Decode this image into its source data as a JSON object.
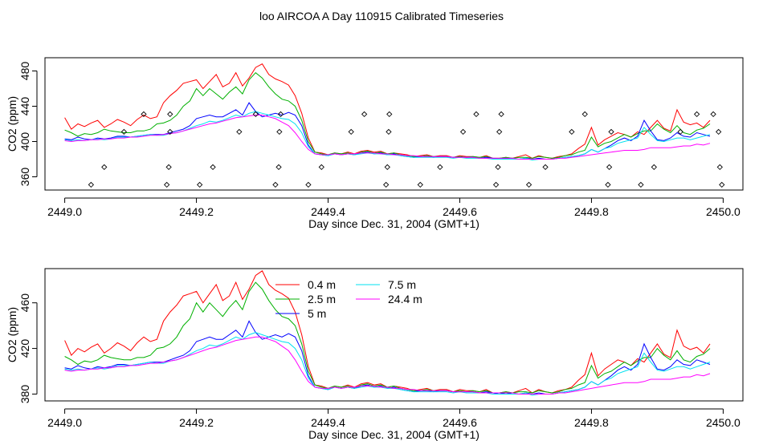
{
  "title": "loo AIRCOA A  Day 110915  Calibrated Timeseries",
  "colors": {
    "0.4 m": "#ff0000",
    "2.5 m": "#00b000",
    "5 m": "#0000ff",
    "7.5 m": "#00e0f0",
    "24.4 m": "#ff00ff",
    "points": "#000000",
    "axes": "#000000",
    "background": "#ffffff"
  },
  "chart_data": [
    {
      "type": "line",
      "xlabel": "Day since Dec. 31, 2004 (GMT+1)",
      "ylabel": "CO2 (ppm)",
      "xlim": [
        2448.97,
        2450.03
      ],
      "ylim": [
        345,
        495
      ],
      "xticks": [
        2449.0,
        2449.2,
        2449.4,
        2449.6,
        2449.8,
        2450.0
      ],
      "xtick_labels": [
        "2449.0",
        "2449.2",
        "2449.4",
        "2449.6",
        "2449.8",
        "2450.0"
      ],
      "yticks": [
        360,
        400,
        440,
        480
      ],
      "ytick_labels": [
        "360",
        "400",
        "440",
        "480"
      ],
      "legend": null,
      "points": {
        "x": [
          2449.04,
          2449.06,
          2449.09,
          2449.12,
          2449.155,
          2449.158,
          2449.16,
          2449.16,
          2449.205,
          2449.225,
          2449.265,
          2449.29,
          2449.32,
          2449.325,
          2449.326,
          2449.328,
          2449.37,
          2449.39,
          2449.435,
          2449.455,
          2449.488,
          2449.49,
          2449.492,
          2449.493,
          2449.54,
          2449.57,
          2449.605,
          2449.625,
          2449.655,
          2449.658,
          2449.66,
          2449.663,
          2449.705,
          2449.73,
          2449.77,
          2449.79,
          2449.825,
          2449.827,
          2449.83,
          2449.875,
          2449.895,
          2449.935,
          2449.96,
          2449.985,
          2449.993,
          2449.995,
          2449.998
        ],
        "y": [
          351,
          371,
          411,
          431,
          351,
          371,
          411,
          431,
          351,
          371,
          411,
          431,
          351,
          371,
          411,
          431,
          351,
          371,
          411,
          431,
          351,
          371,
          411,
          431,
          351,
          371,
          411,
          431,
          351,
          371,
          411,
          431,
          351,
          371,
          411,
          431,
          351,
          371,
          411,
          351,
          371,
          411,
          431,
          431,
          411,
          371,
          351
        ]
      }
    },
    {
      "type": "line",
      "xlabel": "Day since Dec. 31, 2004 (GMT+1)",
      "ylabel": "CO2 (ppm)",
      "xlim": [
        2448.97,
        2450.03
      ],
      "ylim": [
        374,
        490
      ],
      "xticks": [
        2449.0,
        2449.2,
        2449.4,
        2449.6,
        2449.8,
        2450.0
      ],
      "xtick_labels": [
        "2449.0",
        "2449.2",
        "2449.4",
        "2449.6",
        "2449.8",
        "2450.0"
      ],
      "yticks": [
        380,
        420,
        460
      ],
      "ytick_labels": [
        "380",
        "420",
        "460"
      ],
      "legend": "top-center, two columns"
    }
  ],
  "series_x": [
    2449.0,
    2449.01,
    2449.02,
    2449.03,
    2449.04,
    2449.05,
    2449.06,
    2449.07,
    2449.08,
    2449.09,
    2449.1,
    2449.11,
    2449.12,
    2449.13,
    2449.14,
    2449.15,
    2449.16,
    2449.17,
    2449.18,
    2449.19,
    2449.2,
    2449.21,
    2449.22,
    2449.23,
    2449.24,
    2449.25,
    2449.26,
    2449.27,
    2449.28,
    2449.29,
    2449.3,
    2449.31,
    2449.32,
    2449.33,
    2449.34,
    2449.35,
    2449.36,
    2449.37,
    2449.38,
    2449.39,
    2449.4,
    2449.41,
    2449.42,
    2449.43,
    2449.44,
    2449.45,
    2449.46,
    2449.47,
    2449.48,
    2449.49,
    2449.5,
    2449.51,
    2449.52,
    2449.53,
    2449.54,
    2449.55,
    2449.56,
    2449.57,
    2449.58,
    2449.59,
    2449.6,
    2449.61,
    2449.62,
    2449.63,
    2449.64,
    2449.65,
    2449.66,
    2449.67,
    2449.68,
    2449.69,
    2449.7,
    2449.71,
    2449.72,
    2449.73,
    2449.74,
    2449.75,
    2449.76,
    2449.77,
    2449.78,
    2449.79,
    2449.8,
    2449.81,
    2449.82,
    2449.83,
    2449.84,
    2449.85,
    2449.86,
    2449.87,
    2449.88,
    2449.89,
    2449.9,
    2449.91,
    2449.92,
    2449.93,
    2449.94,
    2449.95,
    2449.96,
    2449.97,
    2449.98
  ],
  "series": [
    {
      "name": "0.4 m",
      "values": [
        427,
        414,
        420,
        417,
        421,
        424,
        416,
        420,
        425,
        422,
        418,
        425,
        430,
        426,
        428,
        444,
        452,
        458,
        466,
        468,
        470,
        460,
        468,
        476,
        462,
        466,
        478,
        463,
        472,
        484,
        488,
        476,
        471,
        468,
        464,
        452,
        432,
        404,
        388,
        387,
        385,
        387,
        386,
        388,
        386,
        389,
        390,
        388,
        389,
        386,
        387,
        386,
        385,
        383,
        384,
        385,
        383,
        384,
        384,
        382,
        384,
        383,
        383,
        382,
        384,
        381,
        381,
        382,
        381,
        383,
        385,
        381,
        384,
        382,
        381,
        383,
        384,
        386,
        392,
        397,
        416,
        396,
        402,
        406,
        410,
        408,
        405,
        411,
        408,
        416,
        424,
        415,
        412,
        436,
        422,
        419,
        421,
        416,
        424
      ]
    },
    {
      "name": "2.5 m",
      "values": [
        413,
        410,
        406,
        409,
        408,
        410,
        414,
        412,
        411,
        410,
        410,
        412,
        412,
        414,
        420,
        421,
        424,
        430,
        440,
        446,
        460,
        452,
        460,
        454,
        448,
        456,
        462,
        454,
        470,
        478,
        472,
        462,
        454,
        448,
        446,
        440,
        424,
        400,
        388,
        386,
        385,
        387,
        386,
        387,
        385,
        388,
        389,
        387,
        388,
        386,
        387,
        385,
        384,
        383,
        383,
        384,
        383,
        383,
        383,
        382,
        383,
        382,
        383,
        382,
        383,
        381,
        381,
        382,
        381,
        382,
        382,
        381,
        383,
        382,
        381,
        382,
        384,
        385,
        388,
        390,
        405,
        394,
        398,
        400,
        404,
        408,
        405,
        409,
        412,
        412,
        420,
        414,
        410,
        418,
        410,
        408,
        413,
        415,
        420
      ]
    },
    {
      "name": "5 m",
      "values": [
        403,
        402,
        405,
        403,
        402,
        404,
        403,
        404,
        406,
        406,
        405,
        406,
        407,
        408,
        408,
        408,
        410,
        412,
        414,
        418,
        426,
        428,
        430,
        428,
        428,
        432,
        436,
        430,
        444,
        434,
        428,
        430,
        432,
        430,
        433,
        430,
        418,
        396,
        386,
        385,
        384,
        386,
        385,
        386,
        385,
        387,
        388,
        386,
        387,
        385,
        386,
        384,
        383,
        382,
        383,
        383,
        382,
        383,
        383,
        382,
        382,
        382,
        382,
        381,
        382,
        381,
        380,
        381,
        380,
        380,
        381,
        380,
        381,
        380,
        380,
        381,
        382,
        383,
        384,
        386,
        391,
        388,
        392,
        396,
        401,
        404,
        401,
        406,
        424,
        412,
        402,
        401,
        404,
        410,
        406,
        405,
        410,
        408,
        406
      ]
    },
    {
      "name": "7.5 m",
      "values": [
        402,
        401,
        402,
        401,
        402,
        403,
        402,
        403,
        405,
        405,
        405,
        406,
        407,
        408,
        407,
        407,
        409,
        410,
        412,
        415,
        418,
        420,
        423,
        422,
        424,
        427,
        430,
        428,
        432,
        434,
        432,
        430,
        428,
        426,
        425,
        420,
        410,
        394,
        386,
        385,
        384,
        386,
        385,
        386,
        385,
        386,
        387,
        386,
        386,
        385,
        385,
        384,
        383,
        382,
        382,
        382,
        382,
        382,
        382,
        381,
        382,
        381,
        381,
        381,
        381,
        380,
        380,
        380,
        380,
        380,
        381,
        379,
        380,
        380,
        380,
        381,
        382,
        383,
        384,
        386,
        391,
        388,
        392,
        394,
        398,
        400,
        402,
        404,
        416,
        408,
        401,
        400,
        402,
        404,
        404,
        402,
        404,
        406,
        408
      ]
    },
    {
      "name": "24.4 m",
      "values": [
        401,
        400,
        401,
        401,
        402,
        402,
        403,
        403,
        404,
        404,
        405,
        405,
        406,
        407,
        407,
        408,
        409,
        410,
        412,
        414,
        416,
        418,
        420,
        421,
        423,
        425,
        427,
        428,
        429,
        430,
        430,
        428,
        426,
        422,
        418,
        410,
        400,
        391,
        386,
        385,
        385,
        386,
        385,
        386,
        386,
        387,
        387,
        387,
        386,
        386,
        385,
        385,
        384,
        384,
        383,
        383,
        383,
        383,
        383,
        382,
        382,
        382,
        382,
        381,
        381,
        381,
        381,
        381,
        381,
        380,
        380,
        380,
        380,
        380,
        380,
        381,
        381,
        382,
        383,
        384,
        385,
        386,
        387,
        388,
        389,
        390,
        390,
        390,
        391,
        393,
        393,
        393,
        393,
        394,
        395,
        395,
        397,
        396,
        398
      ]
    }
  ]
}
